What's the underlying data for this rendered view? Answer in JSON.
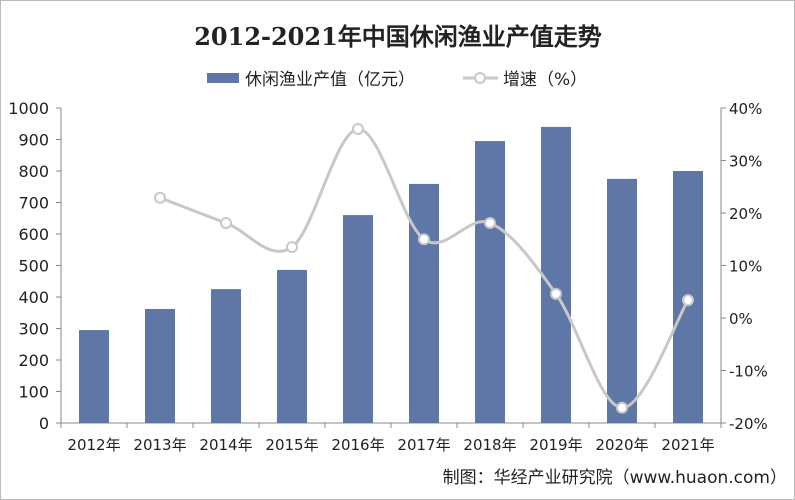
{
  "chart_data": {
    "type": "bar",
    "title": "2012-2021年中国休闲渔业产值走势",
    "categories": [
      "2012年",
      "2013年",
      "2014年",
      "2015年",
      "2016年",
      "2017年",
      "2018年",
      "2019年",
      "2020年",
      "2021年"
    ],
    "series": [
      {
        "name": "休闲渔业产值（亿元）",
        "type": "bar",
        "axis": "left",
        "color": "#5e77a6",
        "values": [
          295,
          362,
          425,
          486,
          660,
          759,
          895,
          940,
          775,
          800
        ]
      },
      {
        "name": "增速（%）",
        "type": "line",
        "axis": "right",
        "color": "#c8c8c8",
        "values": [
          null,
          22.9,
          18.1,
          13.5,
          36.0,
          15.0,
          18.1,
          4.6,
          -17.1,
          3.4
        ]
      }
    ],
    "ylim": [
      0,
      1000
    ],
    "yticks": [
      "0",
      "100",
      "200",
      "300",
      "400",
      "500",
      "600",
      "700",
      "800",
      "900",
      "1000"
    ],
    "y2lim": [
      -20,
      40
    ],
    "y2ticks": [
      "-20%",
      "-10%",
      "0%",
      "10%",
      "20%",
      "30%",
      "40%"
    ],
    "legend": "top",
    "grid": false
  },
  "source": "制图：华经产业研究院（www.huaon.com）",
  "watermark": "华经产业研究院 www.huaon.com"
}
